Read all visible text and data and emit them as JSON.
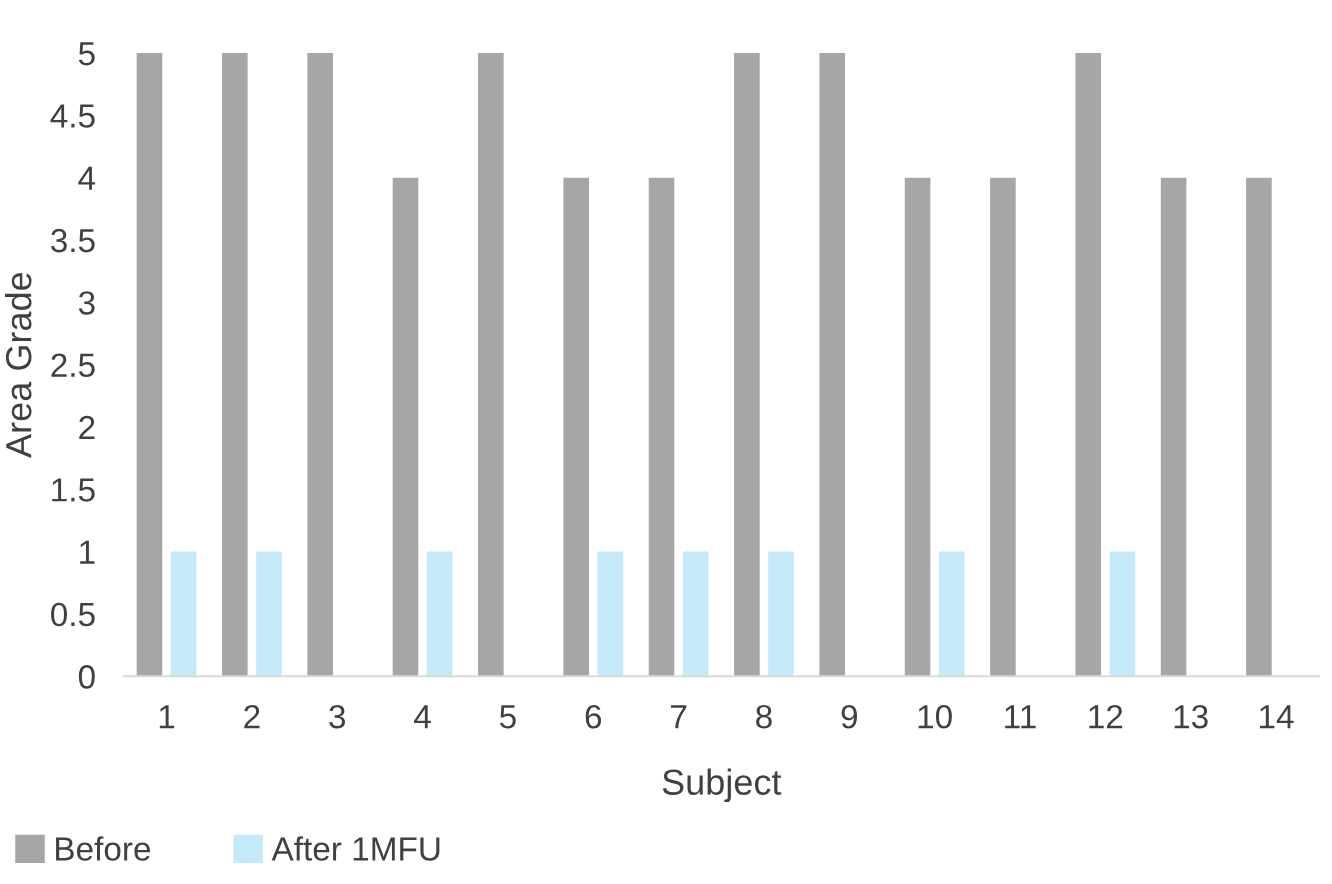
{
  "chart_data": {
    "type": "bar",
    "xlabel": "Subject",
    "ylabel": "Area Grade",
    "categories": [
      "1",
      "2",
      "3",
      "4",
      "5",
      "6",
      "7",
      "8",
      "9",
      "10",
      "11",
      "12",
      "13",
      "14"
    ],
    "series": [
      {
        "name": "Before",
        "color": "#a6a6a6",
        "values": [
          5,
          5,
          5,
          4,
          5,
          4,
          4,
          5,
          5,
          4,
          4,
          5,
          4,
          4
        ]
      },
      {
        "name": "After 1MFU",
        "color": "#c5e9f8",
        "values": [
          1,
          1,
          0,
          1,
          0,
          1,
          1,
          1,
          0,
          1,
          0,
          1,
          0,
          0
        ]
      }
    ],
    "ylim": [
      0,
      5
    ],
    "yticks": [
      0,
      0.5,
      1,
      1.5,
      2,
      2.5,
      3,
      3.5,
      4,
      4.5,
      5
    ],
    "grid": false,
    "legend": "bottom left"
  }
}
